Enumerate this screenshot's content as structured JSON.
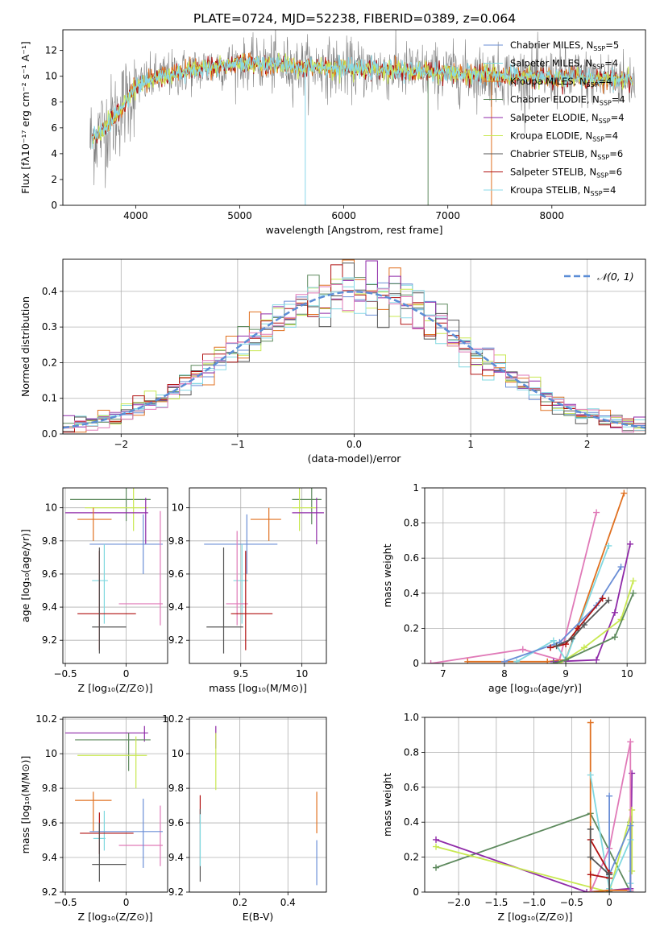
{
  "title": "PLATE=0724, MJD=52238, FIBERID=0389, z=0.064",
  "colors": {
    "Chabrier MILES": "#6a8ed6",
    "Salpeter MILES": "#80d8e0",
    "Kroupa MILES": "#e07020",
    "Chabrier ELODIE": "#5e8a5e",
    "Salpeter ELODIE": "#8f2aa8",
    "Kroupa ELODIE": "#c8e850",
    "Chabrier STELIB": "#555555",
    "Salpeter STELIB": "#b01010",
    "Kroupa STELIB": "#88d8e8",
    "Pink": "#e07ab8",
    "Data": "#808080",
    "Gaussian": "#5b8dd6"
  },
  "chart_data": [
    {
      "id": "spectrum",
      "type": "line",
      "title": "PLATE=0724, MJD=52238, FIBERID=0389, z=0.064",
      "xlabel": "wavelength [Angstrom, rest frame]",
      "ylabel": "Flux [fλ10⁻¹⁷ erg cm⁻² s⁻¹ A⁻¹]",
      "xlim": [
        3300,
        8900
      ],
      "ylim": [
        0,
        13.6
      ],
      "xticks": [
        4000,
        5000,
        6000,
        7000,
        8000
      ],
      "yticks": [
        0,
        2,
        4,
        6,
        8,
        10,
        12
      ],
      "legend_position": "top-right",
      "legend": [
        {
          "name": "Chabrier MILES",
          "sub": "SSP",
          "n": "5"
        },
        {
          "name": "Salpeter MILES",
          "sub": "SSP",
          "n": "4"
        },
        {
          "name": "Kroupa MILES",
          "sub": "SSP",
          "n": "4"
        },
        {
          "name": "Chabrier ELODIE",
          "sub": "SSP",
          "n": "4"
        },
        {
          "name": "Salpeter ELODIE",
          "sub": "SSP",
          "n": "4"
        },
        {
          "name": "Kroupa ELODIE",
          "sub": "SSP",
          "n": "4"
        },
        {
          "name": "Chabrier STELIB",
          "sub": "SSP",
          "n": "6"
        },
        {
          "name": "Salpeter STELIB",
          "sub": "SSP",
          "n": "6"
        },
        {
          "name": "Kroupa STELIB",
          "sub": "SSP",
          "n": "4"
        }
      ],
      "continuum": {
        "x": [
          3560,
          3650,
          3800,
          3900,
          4000,
          4200,
          4500,
          4800,
          5000,
          5300,
          5600,
          5800,
          6000,
          6300,
          6600,
          6900,
          7200,
          7400,
          7600,
          7800,
          8000,
          8200,
          8400,
          8600,
          8800
        ],
        "y": [
          5.0,
          5.6,
          6.8,
          8.0,
          9.2,
          9.9,
          10.4,
          10.8,
          11.0,
          10.9,
          10.7,
          10.7,
          10.6,
          10.5,
          10.4,
          10.3,
          10.2,
          10.1,
          10.0,
          10.0,
          9.9,
          9.9,
          9.8,
          9.8,
          9.7
        ]
      }
    },
    {
      "id": "residuals",
      "type": "bar",
      "xlabel": "(data-model)/error",
      "ylabel": "Normed distribution",
      "xlim": [
        -2.5,
        2.5
      ],
      "ylim": [
        0,
        0.49
      ],
      "xticks": [
        -2,
        -1,
        0,
        1,
        2
      ],
      "yticks": [
        0.0,
        0.1,
        0.2,
        0.3,
        0.4
      ],
      "legend": "𝒩(0, 1)",
      "legend_position": "top-right",
      "grid": true,
      "bin_width": 0.1
    },
    {
      "id": "age-vs-Z",
      "type": "scatter",
      "xlabel": "Z [log₁₀(Z/Z⊙)]",
      "ylabel": "age  [log₁₀(age/yr)]",
      "xlim": [
        -0.52,
        0.34
      ],
      "ylim": [
        9.06,
        10.12
      ],
      "xticks": [
        -0.5,
        0.0
      ],
      "yticks": [
        9.2,
        9.4,
        9.6,
        9.8,
        10.0
      ],
      "grid": true,
      "points": [
        {
          "c": "#5e8a5e",
          "x": 0.0,
          "y": 10.05,
          "xe": [
            -0.46,
            0.2
          ],
          "ye": [
            9.92,
            10.12
          ]
        },
        {
          "c": "#c8e850",
          "x": 0.06,
          "y": 10.0,
          "xe": [
            -0.34,
            0.18
          ],
          "ye": [
            9.86,
            10.12
          ]
        },
        {
          "c": "#8f2aa8",
          "x": 0.16,
          "y": 9.97,
          "xe": [
            -0.5,
            0.18
          ],
          "ye": [
            9.78,
            10.06
          ]
        },
        {
          "c": "#e07020",
          "x": -0.27,
          "y": 9.93,
          "xe": [
            -0.4,
            -0.12
          ],
          "ye": [
            9.8,
            10.0
          ]
        },
        {
          "c": "#6a8ed6",
          "x": 0.14,
          "y": 9.78,
          "xe": [
            -0.3,
            0.3
          ],
          "ye": [
            9.6,
            9.96
          ]
        },
        {
          "c": "#80d8e0",
          "x": -0.18,
          "y": 9.56,
          "xe": [
            -0.28,
            -0.15
          ],
          "ye": [
            9.3,
            9.78
          ]
        },
        {
          "c": "#e07ab8",
          "x": 0.28,
          "y": 9.42,
          "xe": [
            -0.06,
            0.3
          ],
          "ye": [
            9.29,
            9.98
          ]
        },
        {
          "c": "#b01010",
          "x": -0.22,
          "y": 9.36,
          "xe": [
            -0.4,
            0.08
          ],
          "ye": [
            9.14,
            9.74
          ]
        },
        {
          "c": "#555555",
          "x": -0.22,
          "y": 9.28,
          "xe": [
            -0.28,
            0.0
          ],
          "ye": [
            9.12,
            9.76
          ]
        }
      ]
    },
    {
      "id": "age-vs-mass",
      "type": "scatter",
      "xlabel": "mass [log₁₀(M/M⊙)]",
      "ylabel": "",
      "xlim": [
        9.08,
        10.2
      ],
      "ylim": [
        9.06,
        10.12
      ],
      "xticks": [
        9.5,
        10.0
      ],
      "yticks": [
        9.2,
        9.4,
        9.6,
        9.8,
        10.0
      ],
      "grid": true,
      "points": [
        {
          "c": "#5e8a5e",
          "x": 10.08,
          "y": 10.05,
          "xe": [
            9.92,
            10.16
          ],
          "ye": [
            9.9,
            10.12
          ]
        },
        {
          "c": "#c8e850",
          "x": 9.98,
          "y": 10.0,
          "xe": [
            9.92,
            10.12
          ],
          "ye": [
            9.86,
            10.12
          ]
        },
        {
          "c": "#8f2aa8",
          "x": 10.12,
          "y": 9.97,
          "xe": [
            9.92,
            10.18
          ],
          "ye": [
            9.78,
            10.06
          ]
        },
        {
          "c": "#e07020",
          "x": 9.73,
          "y": 9.93,
          "xe": [
            9.58,
            9.83
          ],
          "ye": [
            9.8,
            10.0
          ]
        },
        {
          "c": "#6a8ed6",
          "x": 9.55,
          "y": 9.78,
          "xe": [
            9.2,
            9.8
          ],
          "ye": [
            9.6,
            9.96
          ]
        },
        {
          "c": "#80d8e0",
          "x": 9.51,
          "y": 9.56,
          "xe": [
            9.44,
            9.56
          ],
          "ye": [
            9.3,
            9.78
          ]
        },
        {
          "c": "#e07ab8",
          "x": 9.47,
          "y": 9.42,
          "xe": [
            9.38,
            9.56
          ],
          "ye": [
            9.29,
            9.86
          ]
        },
        {
          "c": "#b01010",
          "x": 9.54,
          "y": 9.36,
          "xe": [
            9.42,
            9.76
          ],
          "ye": [
            9.14,
            9.74
          ]
        },
        {
          "c": "#555555",
          "x": 9.36,
          "y": 9.28,
          "xe": [
            9.22,
            9.52
          ],
          "ye": [
            9.12,
            9.76
          ]
        }
      ]
    },
    {
      "id": "mass-weight-vs-age",
      "type": "line",
      "xlabel": "age  [log₁₀(age/yr)]",
      "ylabel": "mass weight",
      "xlim": [
        6.7,
        10.3
      ],
      "ylim": [
        0,
        1
      ],
      "xticks": [
        7,
        8,
        9,
        10
      ],
      "yticks": [
        0.0,
        0.2,
        0.4,
        0.6,
        0.8,
        1.0
      ],
      "grid": true,
      "series": [
        {
          "c": "#e07ab8",
          "x": [
            6.8,
            8.3,
            8.9,
            9.5
          ],
          "y": [
            0.0,
            0.08,
            0.02,
            0.86
          ]
        },
        {
          "c": "#e07020",
          "x": [
            7.4,
            8.7,
            9.0,
            9.95
          ],
          "y": [
            0.01,
            0.01,
            0.02,
            0.97
          ]
        },
        {
          "c": "#80d8e0",
          "x": [
            8.2,
            8.8,
            9.0,
            9.7
          ],
          "y": [
            0.01,
            0.13,
            0.02,
            0.67
          ]
        },
        {
          "c": "#6a8ed6",
          "x": [
            8.0,
            8.9,
            9.5,
            9.9
          ],
          "y": [
            0.01,
            0.12,
            0.33,
            0.55
          ]
        },
        {
          "c": "#8f2aa8",
          "x": [
            8.8,
            9.5,
            9.8,
            10.05
          ],
          "y": [
            0.01,
            0.02,
            0.29,
            0.68
          ]
        },
        {
          "c": "#c8e850",
          "x": [
            8.9,
            9.3,
            9.9,
            10.1
          ],
          "y": [
            0.0,
            0.09,
            0.25,
            0.47
          ]
        },
        {
          "c": "#5e8a5e",
          "x": [
            8.8,
            9.0,
            9.8,
            10.1
          ],
          "y": [
            0.0,
            0.02,
            0.15,
            0.4
          ]
        },
        {
          "c": "#b01010",
          "x": [
            8.75,
            9.0,
            9.2,
            9.6
          ],
          "y": [
            0.09,
            0.11,
            0.2,
            0.37
          ]
        },
        {
          "c": "#555555",
          "x": [
            8.85,
            9.1,
            9.3,
            9.7
          ],
          "y": [
            0.1,
            0.14,
            0.22,
            0.36
          ]
        }
      ]
    },
    {
      "id": "mass-vs-Z",
      "type": "scatter",
      "xlabel": "Z [log₁₀(Z/Z⊙)]",
      "ylabel": "mass [log₁₀(M/M⊙)]",
      "xlim": [
        -0.52,
        0.34
      ],
      "ylim": [
        9.2,
        10.21
      ],
      "xticks": [
        -0.5,
        0.0
      ],
      "yticks": [
        9.2,
        9.4,
        9.6,
        9.8,
        10.0,
        10.2
      ],
      "grid": true,
      "points": [
        {
          "c": "#8f2aa8",
          "x": 0.15,
          "y": 10.12,
          "xe": [
            -0.5,
            0.18
          ],
          "ye": [
            10.07,
            10.16
          ]
        },
        {
          "c": "#5e8a5e",
          "x": 0.02,
          "y": 10.08,
          "xe": [
            -0.42,
            0.2
          ],
          "ye": [
            9.9,
            10.12
          ]
        },
        {
          "c": "#c8e850",
          "x": 0.08,
          "y": 9.99,
          "xe": [
            -0.4,
            0.17
          ],
          "ye": [
            9.8,
            10.1
          ]
        },
        {
          "c": "#e07020",
          "x": -0.27,
          "y": 9.73,
          "xe": [
            -0.42,
            -0.12
          ],
          "ye": [
            9.55,
            9.78
          ]
        },
        {
          "c": "#80d8e0",
          "x": -0.18,
          "y": 9.51,
          "xe": [
            -0.27,
            -0.17
          ],
          "ye": [
            9.44,
            9.67
          ]
        },
        {
          "c": "#e07ab8",
          "x": 0.28,
          "y": 9.47,
          "xe": [
            -0.06,
            0.3
          ],
          "ye": [
            9.35,
            9.7
          ]
        },
        {
          "c": "#6a8ed6",
          "x": 0.14,
          "y": 9.55,
          "xe": [
            -0.3,
            0.3
          ],
          "ye": [
            9.34,
            9.74
          ]
        },
        {
          "c": "#b01010",
          "x": -0.22,
          "y": 9.54,
          "xe": [
            -0.38,
            0.06
          ],
          "ye": [
            9.42,
            9.66
          ]
        },
        {
          "c": "#555555",
          "x": -0.22,
          "y": 9.36,
          "xe": [
            -0.28,
            0.0
          ],
          "ye": [
            9.26,
            9.6
          ]
        }
      ]
    },
    {
      "id": "mass-vs-EBV",
      "type": "scatter",
      "xlabel": "E(B-V)",
      "ylabel": "",
      "xlim": [
        -0.01,
        0.56
      ],
      "ylim": [
        9.2,
        10.21
      ],
      "xticks": [
        0.2,
        0.4
      ],
      "yticks": [
        9.2,
        9.4,
        9.6,
        9.8,
        10.0,
        10.2
      ],
      "grid": true,
      "vbars": [
        {
          "c": "#8f2aa8",
          "x": 0.1,
          "y": [
            10.03,
            10.16
          ]
        },
        {
          "c": "#c8e850",
          "x": 0.1,
          "y": [
            9.79,
            10.12
          ]
        },
        {
          "c": "#b01010",
          "x": 0.035,
          "y": [
            9.6,
            9.76
          ]
        },
        {
          "c": "#555555",
          "x": 0.035,
          "y": [
            9.26,
            9.68
          ]
        },
        {
          "c": "#80d8e0",
          "x": 0.035,
          "y": [
            9.35,
            9.65
          ]
        },
        {
          "c": "#e07020",
          "x": 0.52,
          "y": [
            9.54,
            9.78
          ]
        },
        {
          "c": "#6a8ed6",
          "x": 0.52,
          "y": [
            9.24,
            9.5
          ]
        }
      ]
    },
    {
      "id": "mass-weight-vs-Z",
      "type": "line",
      "xlabel": "Z [log₁₀(Z/Z⊙)]",
      "ylabel": "mass weight",
      "xlim": [
        -2.45,
        0.48
      ],
      "ylim": [
        0,
        1
      ],
      "xticks": [
        -2.0,
        -1.5,
        -1.0,
        -0.5,
        0.0
      ],
      "yticks": [
        0.0,
        0.2,
        0.4,
        0.6,
        0.8,
        1.0
      ],
      "grid": true,
      "series": [
        {
          "c": "#5e8a5e",
          "x": [
            -2.3,
            -0.25,
            0.28,
            0.28
          ],
          "y": [
            0.14,
            0.45,
            0.0,
            0.4
          ]
        },
        {
          "c": "#8f2aa8",
          "x": [
            -2.3,
            -0.3,
            0.28,
            0.3
          ],
          "y": [
            0.3,
            0.0,
            0.02,
            0.68
          ]
        },
        {
          "c": "#c8e850",
          "x": [
            -2.3,
            0.0,
            0.3,
            0.3
          ],
          "y": [
            0.26,
            0.0,
            0.47,
            0.12
          ]
        },
        {
          "c": "#e07020",
          "x": [
            -0.25,
            -0.25,
            0.0,
            0.28
          ],
          "y": [
            0.97,
            0.0,
            0.01,
            0.01
          ]
        },
        {
          "c": "#80d8e0",
          "x": [
            -0.25,
            0.0,
            0.28,
            0.28
          ],
          "y": [
            0.67,
            0.02,
            0.3,
            0.05
          ]
        },
        {
          "c": "#e07ab8",
          "x": [
            -0.25,
            0.0,
            0.28,
            0.28
          ],
          "y": [
            0.0,
            0.25,
            0.86,
            0.01
          ]
        },
        {
          "c": "#6a8ed6",
          "x": [
            0.0,
            0.0,
            0.28,
            0.28
          ],
          "y": [
            0.55,
            0.1,
            0.38,
            0.0
          ]
        },
        {
          "c": "#b01010",
          "x": [
            -0.25,
            0.0,
            0.0,
            -0.25
          ],
          "y": [
            0.1,
            0.08,
            0.11,
            0.3
          ]
        },
        {
          "c": "#555555",
          "x": [
            -0.25,
            -0.25,
            0.0,
            0.0
          ],
          "y": [
            0.36,
            0.2,
            0.1,
            0.0
          ]
        }
      ]
    }
  ]
}
